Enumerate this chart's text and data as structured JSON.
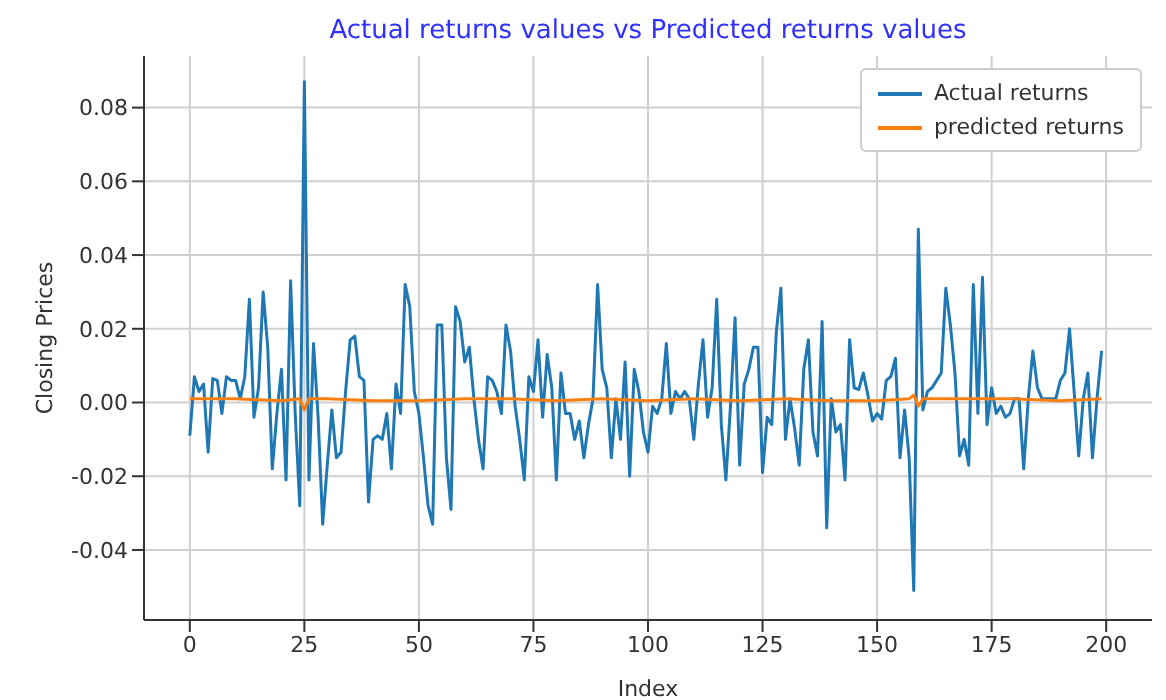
{
  "chart_data": {
    "type": "line",
    "title": "Actual returns values vs Predicted returns values",
    "xlabel": "Index",
    "ylabel": "Closing Prices",
    "xlim": [
      -10,
      210
    ],
    "xticks": [
      0,
      25,
      50,
      75,
      100,
      125,
      150,
      175,
      200
    ],
    "ylim": [
      -0.059,
      0.094
    ],
    "yticks": [
      -0.04,
      -0.02,
      {
        "value": 0,
        "label": "0.00"
      },
      0.02,
      0.04,
      0.06,
      0.08
    ],
    "grid": true,
    "legend": "top right",
    "x": [
      0,
      1,
      2,
      3,
      4,
      5,
      6,
      7,
      8,
      9,
      10,
      11,
      12,
      13,
      14,
      15,
      16,
      17,
      18,
      19,
      20,
      21,
      22,
      23,
      24,
      25,
      26,
      27,
      28,
      29,
      30,
      31,
      32,
      33,
      34,
      35,
      36,
      37,
      38,
      39,
      40,
      41,
      42,
      43,
      44,
      45,
      46,
      47,
      48,
      49,
      50,
      51,
      52,
      53,
      54,
      55,
      56,
      57,
      58,
      59,
      60,
      61,
      62,
      63,
      64,
      65,
      66,
      67,
      68,
      69,
      70,
      71,
      72,
      73,
      74,
      75,
      76,
      77,
      78,
      79,
      80,
      81,
      82,
      83,
      84,
      85,
      86,
      87,
      88,
      89,
      90,
      91,
      92,
      93,
      94,
      95,
      96,
      97,
      98,
      99,
      100,
      101,
      102,
      103,
      104,
      105,
      106,
      107,
      108,
      109,
      110,
      111,
      112,
      113,
      114,
      115,
      116,
      117,
      118,
      119,
      120,
      121,
      122,
      123,
      124,
      125,
      126,
      127,
      128,
      129,
      130,
      131,
      132,
      133,
      134,
      135,
      136,
      137,
      138,
      139,
      140,
      141,
      142,
      143,
      144,
      145,
      146,
      147,
      148,
      149,
      150,
      151,
      152,
      153,
      154,
      155,
      156,
      157,
      158,
      159,
      160,
      161,
      162,
      163,
      164,
      165,
      166,
      167,
      168,
      169,
      170,
      171,
      172,
      173,
      174,
      175,
      176,
      177,
      178,
      179,
      180,
      181,
      182,
      183,
      184,
      185,
      186,
      187,
      188,
      189,
      190,
      191,
      192,
      193,
      194,
      195,
      196,
      197,
      198,
      199
    ],
    "series": [
      {
        "name": "Actual returns",
        "color": "#1f77b4",
        "values": [
          -0.009,
          0.007,
          0.003,
          0.005,
          -0.0135,
          0.0065,
          0.006,
          -0.003,
          0.007,
          0.006,
          0.006,
          0.001,
          0.007,
          0.028,
          -0.004,
          0.004,
          0.03,
          0.015,
          -0.018,
          -0.003,
          0.009,
          -0.021,
          0.033,
          -0.003,
          -0.028,
          0.087,
          -0.021,
          0.016,
          -0.004,
          -0.033,
          -0.017,
          -0.002,
          -0.015,
          -0.0135,
          0.003,
          0.017,
          0.018,
          0.007,
          0.006,
          -0.027,
          -0.01,
          -0.009,
          -0.01,
          -0.003,
          -0.018,
          0.005,
          -0.003,
          0.032,
          0.026,
          0.003,
          -0.003,
          -0.015,
          -0.028,
          -0.033,
          0.021,
          0.021,
          -0.015,
          -0.029,
          0.026,
          0.022,
          0.011,
          0.015,
          0.001,
          -0.01,
          -0.018,
          0.007,
          0.006,
          0.003,
          -0.003,
          0.021,
          0.014,
          -0.001,
          -0.01,
          -0.021,
          0.007,
          0.003,
          0.017,
          -0.004,
          0.013,
          0.004,
          -0.021,
          0.008,
          -0.003,
          -0.003,
          -0.01,
          -0.005,
          -0.015,
          -0.006,
          0.001,
          0.032,
          0.009,
          0.004,
          -0.015,
          0.001,
          -0.01,
          0.011,
          -0.02,
          0.009,
          0.003,
          -0.008,
          -0.0135,
          -0.001,
          -0.003,
          0.001,
          0.016,
          -0.003,
          0.003,
          0.001,
          0.003,
          0.001,
          -0.01,
          0.005,
          0.017,
          -0.004,
          0.004,
          0.028,
          -0.006,
          -0.021,
          -0.001,
          0.023,
          -0.017,
          0.005,
          0.009,
          0.015,
          0.015,
          -0.019,
          -0.004,
          -0.006,
          0.019,
          0.031,
          -0.01,
          0.001,
          -0.007,
          -0.017,
          0.009,
          0.017,
          -0.008,
          -0.0145,
          0.022,
          -0.034,
          0.001,
          -0.008,
          -0.006,
          -0.021,
          0.017,
          0.004,
          0.0035,
          0.008,
          0.002,
          -0.005,
          -0.003,
          -0.0045,
          0.006,
          0.007,
          0.012,
          -0.015,
          -0.002,
          -0.015,
          -0.051,
          0.047,
          -0.002,
          0.003,
          0.004,
          0.006,
          0.008,
          0.031,
          0.021,
          0.008,
          -0.0145,
          -0.01,
          -0.017,
          0.032,
          -0.003,
          0.034,
          -0.006,
          0.004,
          -0.003,
          -0.001,
          -0.004,
          -0.003,
          0.001,
          0.001,
          -0.018,
          0.001,
          0.014,
          0.004,
          0.001,
          0.001,
          0.001,
          0.001,
          0.006,
          0.008,
          0.02,
          0.003,
          -0.0145,
          0.001,
          0.008,
          -0.015,
          0.001,
          0.014
        ]
      },
      {
        "name": "predicted returns",
        "color": "#ff7f0e",
        "x": [
          0,
          10,
          20,
          24,
          25,
          26,
          30,
          40,
          50,
          60,
          70,
          80,
          90,
          100,
          110,
          120,
          130,
          140,
          150,
          157,
          158,
          159,
          160,
          170,
          180,
          190,
          199
        ],
        "values": [
          0.001,
          0.001,
          0.0005,
          0.001,
          -0.002,
          0.001,
          0.001,
          0.0005,
          0.0005,
          0.001,
          0.001,
          0.0005,
          0.001,
          0.0005,
          0.001,
          0.0005,
          0.001,
          0.0005,
          0.0005,
          0.001,
          0.002,
          -0.001,
          0.001,
          0.001,
          0.001,
          0.0005,
          0.001
        ]
      }
    ]
  }
}
